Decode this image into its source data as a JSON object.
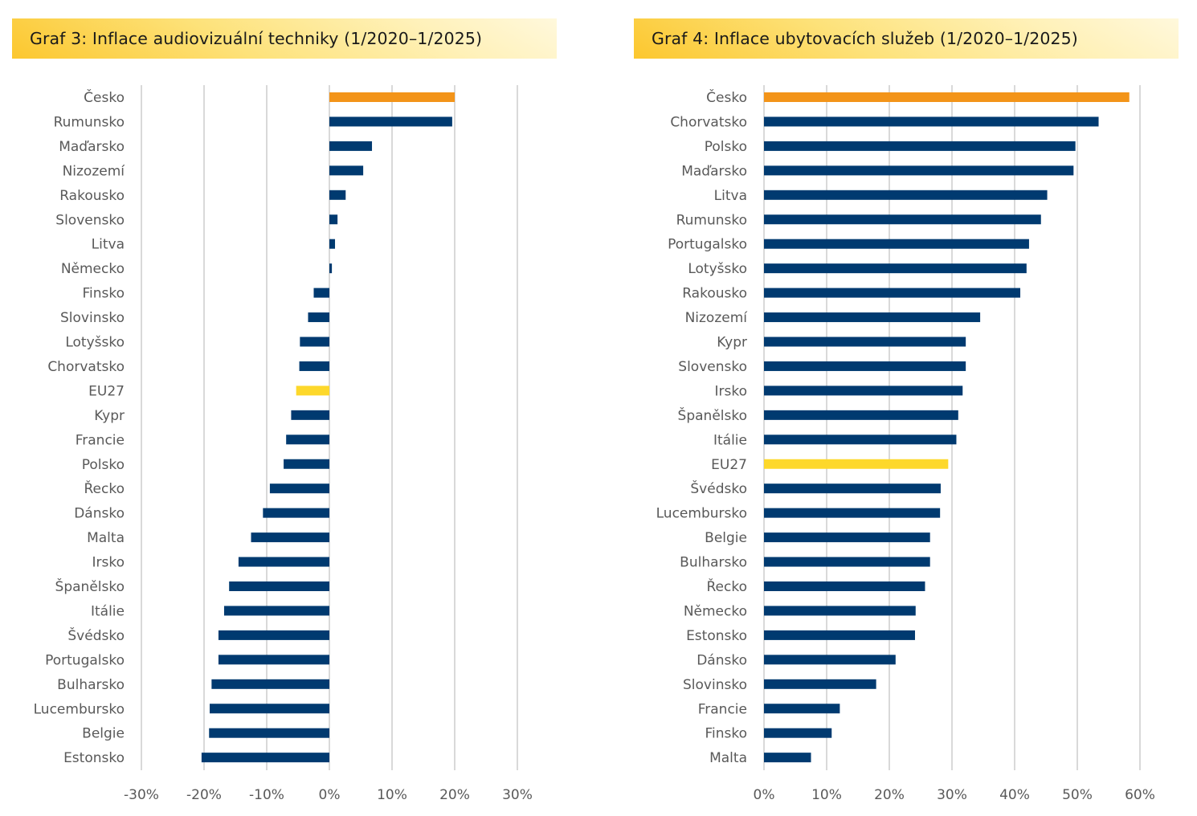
{
  "colors": {
    "bar_default": "#003a70",
    "bar_czech": "#f39419",
    "bar_eu": "#fdd82b",
    "grid": "#d9d9d9",
    "label": "#595959"
  },
  "chart_data": [
    {
      "type": "bar",
      "orientation": "horizontal",
      "title": "Graf 3: Inflace audiovizuální techniky (1/2020–1/2025)",
      "xlabel": "",
      "ylabel": "",
      "xlim": [
        -30,
        30
      ],
      "x_ticks": [
        -30,
        -20,
        -10,
        0,
        10,
        20,
        30
      ],
      "x_tick_labels": [
        "-30%",
        "-20%",
        "-10%",
        "0%",
        "10%",
        "20%",
        "30%"
      ],
      "grid": "vertical",
      "legend": "none",
      "unit": "%",
      "categories": [
        "Česko",
        "Rumunsko",
        "Maďarsko",
        "Nizozemí",
        "Rakousko",
        "Slovensko",
        "Litva",
        "Německo",
        "Finsko",
        "Slovinsko",
        "Lotyšsko",
        "Chorvatsko",
        "EU27",
        "Kypr",
        "Francie",
        "Polsko",
        "Řecko",
        "Dánsko",
        "Malta",
        "Irsko",
        "Španělsko",
        "Itálie",
        "Švédsko",
        "Portugalsko",
        "Bulharsko",
        "Lucembursko",
        "Belgie",
        "Estonsko"
      ],
      "values": [
        20.0,
        19.6,
        6.8,
        5.4,
        2.6,
        1.3,
        0.9,
        0.4,
        -2.5,
        -3.4,
        -4.7,
        -4.8,
        -5.3,
        -6.1,
        -6.9,
        -7.3,
        -9.5,
        -10.6,
        -12.5,
        -14.5,
        -16.0,
        -16.8,
        -17.7,
        -17.7,
        -18.8,
        -19.1,
        -19.2,
        -20.4
      ],
      "highlight": {
        "Česko": "bar_czech",
        "EU27": "bar_eu"
      }
    },
    {
      "type": "bar",
      "orientation": "horizontal",
      "title": "Graf 4: Inflace ubytovacích služeb (1/2020–1/2025)",
      "xlabel": "",
      "ylabel": "",
      "xlim": [
        0,
        60
      ],
      "x_ticks": [
        0,
        10,
        20,
        30,
        40,
        50,
        60
      ],
      "x_tick_labels": [
        "0%",
        "10%",
        "20%",
        "30%",
        "40%",
        "50%",
        "60%"
      ],
      "grid": "vertical",
      "legend": "none",
      "unit": "%",
      "categories": [
        "Česko",
        "Chorvatsko",
        "Polsko",
        "Maďarsko",
        "Litva",
        "Rumunsko",
        "Portugalsko",
        "Lotyšsko",
        "Rakousko",
        "Nizozemí",
        "Kypr",
        "Slovensko",
        "Irsko",
        "Španělsko",
        "Itálie",
        "EU27",
        "Švédsko",
        "Lucembursko",
        "Belgie",
        "Bulharsko",
        "Řecko",
        "Německo",
        "Estonsko",
        "Dánsko",
        "Slovinsko",
        "Francie",
        "Finsko",
        "Malta"
      ],
      "values": [
        58.3,
        53.4,
        49.7,
        49.4,
        45.2,
        44.2,
        42.3,
        41.9,
        40.9,
        34.5,
        32.2,
        32.2,
        31.7,
        31.0,
        30.7,
        29.4,
        28.2,
        28.1,
        26.5,
        26.5,
        25.7,
        24.2,
        24.1,
        21.0,
        17.9,
        12.1,
        10.8,
        7.5
      ],
      "highlight": {
        "Česko": "bar_czech",
        "EU27": "bar_eu"
      }
    }
  ]
}
